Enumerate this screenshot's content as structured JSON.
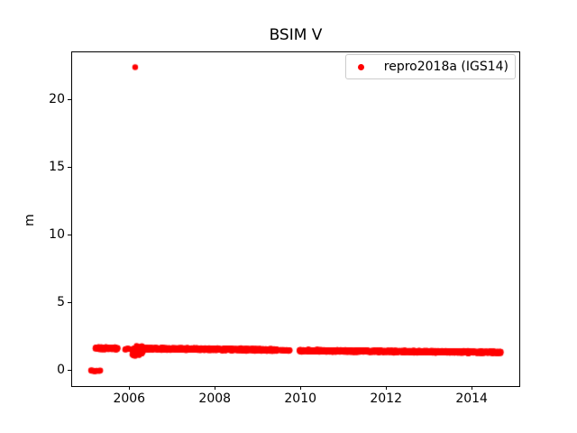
{
  "figure": {
    "title": "BSIM V",
    "ylabel": "m",
    "legend": {
      "label": "repro2018a (IGS14)"
    },
    "background": "#ffffff"
  },
  "chart_data": {
    "type": "scatter",
    "title": "BSIM V",
    "xlabel": "",
    "ylabel": "m",
    "xlim": [
      2004.667,
      2015.113
    ],
    "ylim": [
      -1.19,
      23.45
    ],
    "xticks": [
      2006,
      2008,
      2010,
      2012,
      2014
    ],
    "yticks": [
      0,
      5,
      10,
      15,
      20
    ],
    "grid": false,
    "legend_position": "upper right",
    "marker": {
      "shape": "point",
      "color": "#ff0000",
      "radius_px": 3.2
    },
    "series": [
      {
        "name": "repro2018a (IGS14)",
        "color": "#ff0000",
        "outlier_points": [
          [
            2006.14,
            22.35
          ]
        ],
        "band_segments": [
          {
            "x_start": 2005.1,
            "x_end": 2005.33,
            "y_start": -0.05,
            "y_end": -0.05,
            "spread": 0.07,
            "n": 14
          },
          {
            "x_start": 2005.21,
            "x_end": 2005.73,
            "y_start": 1.62,
            "y_end": 1.58,
            "spread": 0.12,
            "n": 130
          },
          {
            "x_start": 2005.9,
            "x_end": 2005.99,
            "y_start": 1.55,
            "y_end": 1.55,
            "spread": 0.05,
            "n": 10
          },
          {
            "x_start": 2006.07,
            "x_end": 2006.33,
            "y_start": 1.38,
            "y_end": 1.45,
            "spread": 0.46,
            "n": 110
          },
          {
            "x_start": 2006.3,
            "x_end": 2009.45,
            "y_start": 1.58,
            "y_end": 1.48,
            "spread": 0.11,
            "n": 1150
          },
          {
            "x_start": 2009.52,
            "x_end": 2009.76,
            "y_start": 1.46,
            "y_end": 1.44,
            "spread": 0.05,
            "n": 22
          },
          {
            "x_start": 2009.98,
            "x_end": 2014.68,
            "y_start": 1.43,
            "y_end": 1.3,
            "spread": 0.1,
            "n": 1700
          }
        ]
      }
    ]
  }
}
